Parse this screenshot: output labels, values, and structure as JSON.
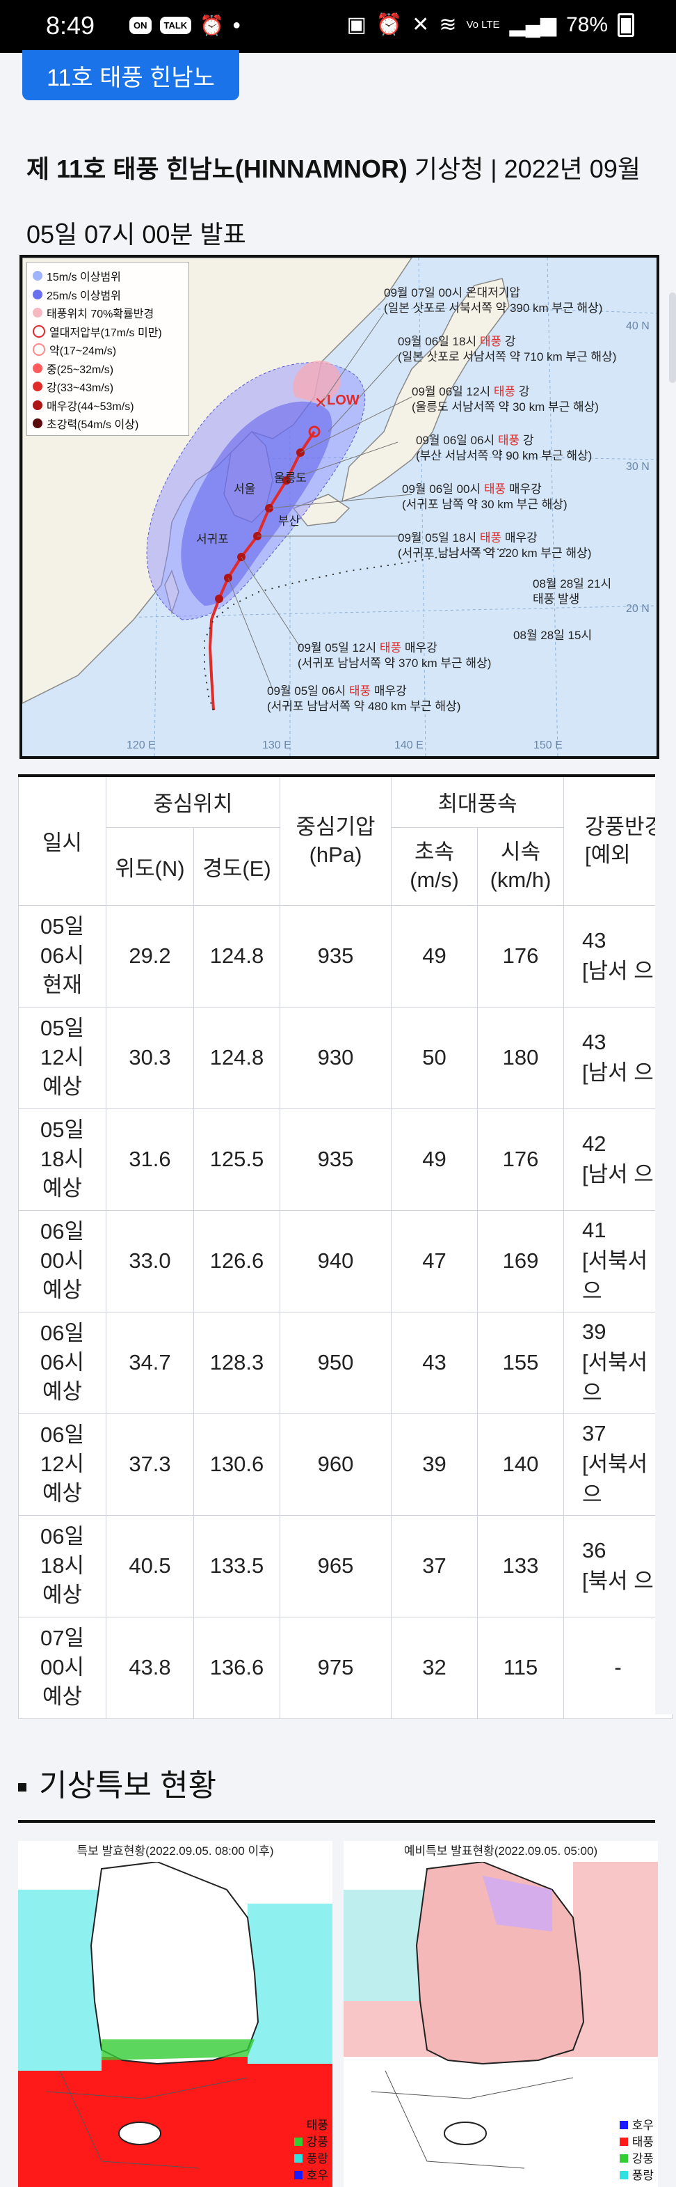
{
  "status_bar": {
    "time": "8:49",
    "badges": [
      "ON",
      "TALK"
    ],
    "network": "Vo LTE",
    "battery": "78%"
  },
  "tab": {
    "label": "11호 태풍 힌남노"
  },
  "report": {
    "title_bold": "제 11호 태풍 힌남노(HINNAMNOR)",
    "title_rest": " 기상청 | 2022년 09월 05일 07시 00분 발표"
  },
  "map": {
    "legend": [
      {
        "label": "15m/s 이상범위",
        "color": "#9fb4ff"
      },
      {
        "label": "25m/s 이상범위",
        "color": "#6a6ef0"
      },
      {
        "label": "태풍위치 70%확률반경",
        "color": "#f7b9c0"
      },
      {
        "label": "열대저압부(17m/s 미만)",
        "color": "#ffffff"
      },
      {
        "label": "약(17~24m/s)",
        "color": "#ff8a8a"
      },
      {
        "label": "중(25~32m/s)",
        "color": "#ff5b5b"
      },
      {
        "label": "강(33~43m/s)",
        "color": "#e12a2a"
      },
      {
        "label": "매우강(44~53m/s)",
        "color": "#b01515"
      },
      {
        "label": "초강력(54m/s 이상)",
        "color": "#5a0a0a"
      }
    ],
    "latitudes": [
      "40 N",
      "30 N",
      "20 N"
    ],
    "longitudes": [
      "120 E",
      "130 E",
      "140 E",
      "150 E"
    ],
    "low_label": "LOW",
    "places": [
      "서울",
      "울릉도",
      "서귀포",
      "부산"
    ],
    "annotations": [
      {
        "line1": "09월 07일 00시 온대저기압",
        "line1_red": "",
        "line1_after": "",
        "line2": "(일본 삿포로 서북서쪽 약 390 km 부근 해상)"
      },
      {
        "line1": "09월 06일 18시 ",
        "line1_red": "태풍",
        "line1_after": " 강",
        "line2": "(일본 삿포로 서남서쪽 약 710 km 부근 해상)"
      },
      {
        "line1": "09월 06일 12시 ",
        "line1_red": "태풍",
        "line1_after": " 강",
        "line2": "(울릉도 서남서쪽 약 30 km 부근 해상)"
      },
      {
        "line1": "09월 06일 06시 ",
        "line1_red": "태풍",
        "line1_after": " 강",
        "line2": "(부산 서남서쪽 약 90 km 부근 해상)"
      },
      {
        "line1": "09월 06일 00시 ",
        "line1_red": "태풍",
        "line1_after": " 매우강",
        "line2": "(서귀포 남쪽 약 30 km 부근 해상)"
      },
      {
        "line1": "09월 05일 18시 ",
        "line1_red": "태풍",
        "line1_after": " 매우강",
        "line2": "(서귀포 남남서쪽 약 220 km 부근 해상)"
      },
      {
        "line1": "08월 28일 21시",
        "line1_red": "",
        "line1_after": "",
        "line2": "태풍 발생"
      },
      {
        "line1": "08월 28일 15시",
        "line1_red": "",
        "line1_after": "",
        "line2": ""
      },
      {
        "line1": "09월 05일 12시 ",
        "line1_red": "태풍",
        "line1_after": " 매우강",
        "line2": "(서귀포 남남서쪽 약 370 km 부근 해상)"
      },
      {
        "line1": "09월 05일 06시 ",
        "line1_red": "태풍",
        "line1_after": " 매우강",
        "line2": "(서귀포 남남서쪽 약 480 km 부근 해상)"
      }
    ]
  },
  "table": {
    "headers": {
      "time": "일시",
      "center": "중심위치",
      "lat": "위도(N)",
      "lon": "경도(E)",
      "pressure": "중심기압\n(hPa)",
      "wind": "최대풍속",
      "ms": "초속\n(m/s)",
      "kmh": "시속\n(km/h)",
      "radius": "강풍반경\n[예외"
    },
    "rows": [
      {
        "time": "05일\n06시\n현재",
        "lat": "29.2",
        "lon": "124.8",
        "pressure": "935",
        "ms": "49",
        "kmh": "176",
        "radius": "43\n[남서 으"
      },
      {
        "time": "05일\n12시\n예상",
        "lat": "30.3",
        "lon": "124.8",
        "pressure": "930",
        "ms": "50",
        "kmh": "180",
        "radius": "43\n[남서 으"
      },
      {
        "time": "05일\n18시\n예상",
        "lat": "31.6",
        "lon": "125.5",
        "pressure": "935",
        "ms": "49",
        "kmh": "176",
        "radius": "42\n[남서 으"
      },
      {
        "time": "06일\n00시\n예상",
        "lat": "33.0",
        "lon": "126.6",
        "pressure": "940",
        "ms": "47",
        "kmh": "169",
        "radius": "41\n[서북서 으"
      },
      {
        "time": "06일\n06시\n예상",
        "lat": "34.7",
        "lon": "128.3",
        "pressure": "950",
        "ms": "43",
        "kmh": "155",
        "radius": "39\n[서북서 으"
      },
      {
        "time": "06일\n12시\n예상",
        "lat": "37.3",
        "lon": "130.6",
        "pressure": "960",
        "ms": "39",
        "kmh": "140",
        "radius": "37\n[서북서 으"
      },
      {
        "time": "06일\n18시\n예상",
        "lat": "40.5",
        "lon": "133.5",
        "pressure": "965",
        "ms": "37",
        "kmh": "133",
        "radius": "36\n[북서 으"
      },
      {
        "time": "07일\n00시\n예상",
        "lat": "43.8",
        "lon": "136.6",
        "pressure": "975",
        "ms": "32",
        "kmh": "115",
        "radius": "-"
      }
    ]
  },
  "special": {
    "title": "기상특보 현황",
    "map1": {
      "caption": "특보 발효현황(2022.09.05. 08:00 이후)",
      "legend": [
        {
          "label": "태풍",
          "color": "#ff1a1a"
        },
        {
          "label": "강풍",
          "color": "#33cc33"
        },
        {
          "label": "풍랑",
          "color": "#33e0e0"
        },
        {
          "label": "호우",
          "color": "#1a1aff"
        }
      ]
    },
    "map2": {
      "caption": "예비특보 발표현황(2022.09.05. 05:00)",
      "legend": [
        {
          "label": "호우",
          "color": "#1a1aff"
        },
        {
          "label": "태풍",
          "color": "#ff1a1a"
        },
        {
          "label": "강풍",
          "color": "#33cc33"
        },
        {
          "label": "풍랑",
          "color": "#33e0e0"
        }
      ]
    }
  }
}
